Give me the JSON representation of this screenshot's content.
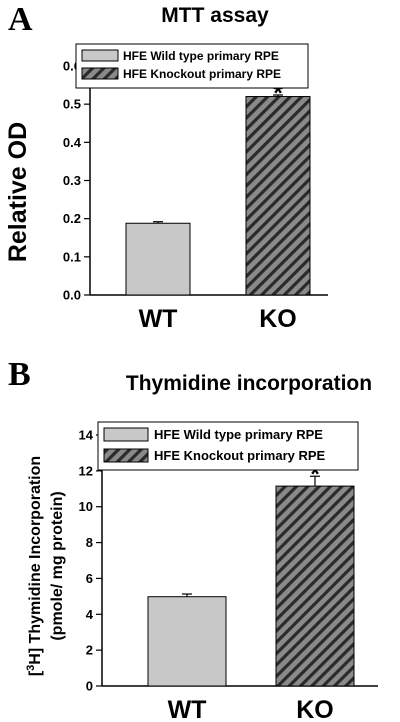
{
  "chart_data": [
    {
      "type": "bar",
      "panel": "A",
      "title": "MTT assay",
      "ylabel": "Relative OD",
      "xlabel": "",
      "categories": [
        "WT",
        "KO"
      ],
      "values": [
        0.188,
        0.52
      ],
      "errors": [
        0.004,
        0.004
      ],
      "significance": [
        "",
        "*"
      ],
      "ylim": [
        0,
        0.6
      ],
      "yticks": [
        0.0,
        0.1,
        0.2,
        0.3,
        0.4,
        0.5,
        0.6
      ],
      "ytick_labels": [
        "0.0",
        "0.1",
        "0.2",
        "0.3",
        "0.4",
        "0.5",
        "0.6"
      ],
      "legend": [
        "HFE Wild type primary RPE",
        "HFE Knockout primary RPE"
      ],
      "legend_position": "top-left",
      "grid": false
    },
    {
      "type": "bar",
      "panel": "B",
      "title": "Thymidine incorporation",
      "ylabel_line1_pre": "[",
      "ylabel_line1_sup": "3",
      "ylabel_line1_post": "H] Thymidine Incorporation",
      "ylabel_line2": "(pmole/ mg protein)",
      "xlabel": "",
      "categories": [
        "WT",
        "KO"
      ],
      "values": [
        4.98,
        11.15
      ],
      "errors": [
        0.15,
        0.55
      ],
      "significance": [
        "",
        "*"
      ],
      "ylim": [
        0,
        14
      ],
      "yticks": [
        0,
        2,
        4,
        6,
        8,
        10,
        12,
        14
      ],
      "ytick_labels": [
        "0",
        "2",
        "4",
        "6",
        "8",
        "10",
        "12",
        "14"
      ],
      "legend": [
        "HFE Wild type primary RPE",
        "HFE Knockout primary RPE"
      ],
      "legend_position": "top-left",
      "grid": false
    }
  ],
  "colors": {
    "wt_fill": "#c8c8c8",
    "ko_fill": "#8a8a8a",
    "ko_hatch": "#2a2a2a",
    "axis": "#000000"
  }
}
